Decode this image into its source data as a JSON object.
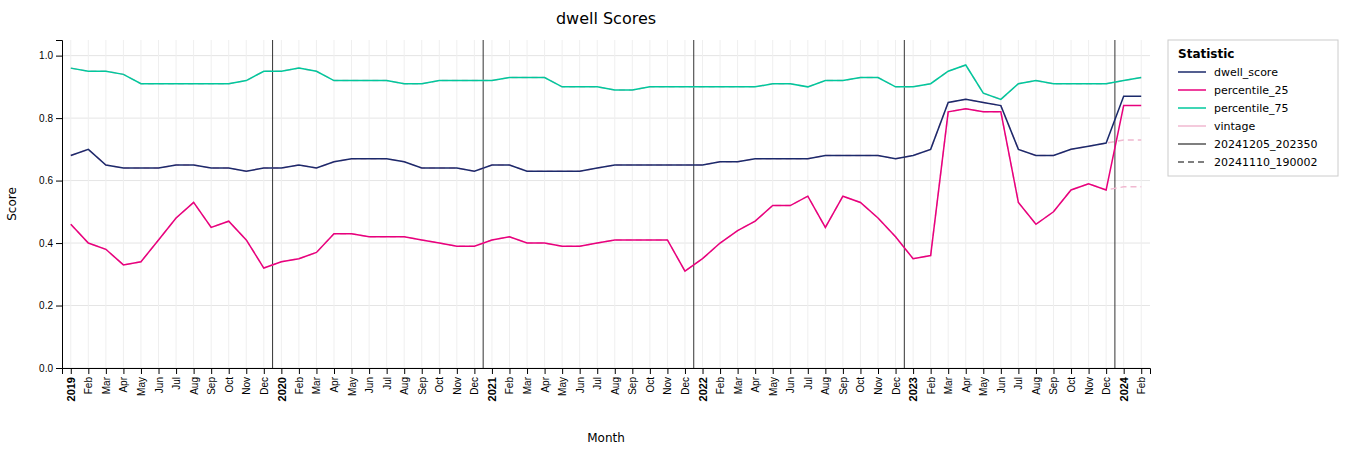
{
  "chart_data": {
    "type": "line",
    "title": "dwell Scores",
    "x_label": "Month",
    "y_label": "Score",
    "categories": [
      "2019",
      "Feb",
      "Mar",
      "Apr",
      "May",
      "Jun",
      "Jul",
      "Aug",
      "Sep",
      "Oct",
      "Nov",
      "Dec",
      "2020",
      "Feb",
      "Mar",
      "Apr",
      "May",
      "Jun",
      "Jul",
      "Aug",
      "Sep",
      "Oct",
      "Nov",
      "Dec",
      "2021",
      "Feb",
      "Mar",
      "Apr",
      "May",
      "Jun",
      "Jul",
      "Aug",
      "Sep",
      "Oct",
      "Nov",
      "Dec",
      "2022",
      "Feb",
      "Mar",
      "Apr",
      "May",
      "Jun",
      "Jul",
      "Aug",
      "Sep",
      "Oct",
      "Nov",
      "Dec",
      "2023",
      "Feb",
      "Mar",
      "Apr",
      "May",
      "Jun",
      "Jul",
      "Aug",
      "Sep",
      "Oct",
      "Nov",
      "Dec",
      "2024",
      "Feb"
    ],
    "series": [
      {
        "color": "#f0b8d0",
        "line_style": "dashed",
        "values": [
          0.68,
          0.7,
          0.65,
          0.64,
          0.64,
          0.64,
          0.65,
          0.65,
          0.64,
          0.64,
          0.63,
          0.64,
          0.64,
          0.65,
          0.64,
          0.66,
          0.67,
          0.67,
          0.67,
          0.66,
          0.64,
          0.64,
          0.64,
          0.63,
          0.65,
          0.65,
          0.63,
          0.63,
          0.63,
          0.63,
          0.64,
          0.65,
          0.65,
          0.65,
          0.65,
          0.65,
          0.65,
          0.66,
          0.66,
          0.67,
          0.67,
          0.67,
          0.67,
          0.68,
          0.68,
          0.68,
          0.68,
          0.67,
          0.68,
          0.7,
          0.85,
          0.86,
          0.85,
          0.84,
          0.7,
          0.68,
          0.68,
          0.7,
          0.71,
          0.72,
          0.73,
          0.73
        ]
      },
      {
        "color": "#f0b8d0",
        "line_style": "dashed",
        "values": [
          0.46,
          0.4,
          0.38,
          0.33,
          0.34,
          0.41,
          0.48,
          0.53,
          0.45,
          0.47,
          0.41,
          0.32,
          0.34,
          0.35,
          0.37,
          0.43,
          0.43,
          0.42,
          0.42,
          0.42,
          0.41,
          0.4,
          0.39,
          0.39,
          0.41,
          0.42,
          0.4,
          0.4,
          0.39,
          0.39,
          0.4,
          0.41,
          0.41,
          0.41,
          0.41,
          0.31,
          0.35,
          0.4,
          0.44,
          0.47,
          0.52,
          0.52,
          0.55,
          0.45,
          0.55,
          0.53,
          0.48,
          0.42,
          0.35,
          0.36,
          0.82,
          0.83,
          0.82,
          0.82,
          0.53,
          0.46,
          0.5,
          0.57,
          0.59,
          0.57,
          0.58,
          0.58
        ]
      },
      {
        "color": "#f0b8d0",
        "line_style": "dashed",
        "values": [
          0.96,
          0.95,
          0.95,
          0.94,
          0.91,
          0.91,
          0.91,
          0.91,
          0.91,
          0.91,
          0.92,
          0.95,
          0.95,
          0.96,
          0.95,
          0.92,
          0.92,
          0.92,
          0.92,
          0.91,
          0.91,
          0.92,
          0.92,
          0.92,
          0.92,
          0.93,
          0.93,
          0.93,
          0.9,
          0.9,
          0.9,
          0.89,
          0.89,
          0.9,
          0.9,
          0.9,
          0.9,
          0.9,
          0.9,
          0.9,
          0.91,
          0.91,
          0.9,
          0.92,
          0.92,
          0.93,
          0.93,
          0.9,
          0.9,
          0.91,
          0.95,
          0.97,
          0.88,
          0.86,
          0.91,
          0.92,
          0.91,
          0.91,
          0.91,
          0.91,
          0.92,
          0.93
        ]
      },
      {
        "color": "#1b2a6b",
        "line_style": "solid",
        "values": [
          0.68,
          0.7,
          0.65,
          0.64,
          0.64,
          0.64,
          0.65,
          0.65,
          0.64,
          0.64,
          0.63,
          0.64,
          0.64,
          0.65,
          0.64,
          0.66,
          0.67,
          0.67,
          0.67,
          0.66,
          0.64,
          0.64,
          0.64,
          0.63,
          0.65,
          0.65,
          0.63,
          0.63,
          0.63,
          0.63,
          0.64,
          0.65,
          0.65,
          0.65,
          0.65,
          0.65,
          0.65,
          0.66,
          0.66,
          0.67,
          0.67,
          0.67,
          0.67,
          0.68,
          0.68,
          0.68,
          0.68,
          0.67,
          0.68,
          0.7,
          0.85,
          0.86,
          0.85,
          0.84,
          0.7,
          0.68,
          0.68,
          0.7,
          0.71,
          0.72,
          0.87,
          0.87
        ]
      },
      {
        "color": "#e8007d",
        "line_style": "solid",
        "values": [
          0.46,
          0.4,
          0.38,
          0.33,
          0.34,
          0.41,
          0.48,
          0.53,
          0.45,
          0.47,
          0.41,
          0.32,
          0.34,
          0.35,
          0.37,
          0.43,
          0.43,
          0.42,
          0.42,
          0.42,
          0.41,
          0.4,
          0.39,
          0.39,
          0.41,
          0.42,
          0.4,
          0.4,
          0.39,
          0.39,
          0.4,
          0.41,
          0.41,
          0.41,
          0.41,
          0.31,
          0.35,
          0.4,
          0.44,
          0.47,
          0.52,
          0.52,
          0.55,
          0.45,
          0.55,
          0.53,
          0.48,
          0.42,
          0.35,
          0.36,
          0.82,
          0.83,
          0.82,
          0.82,
          0.53,
          0.46,
          0.5,
          0.57,
          0.59,
          0.57,
          0.84,
          0.84
        ]
      },
      {
        "color": "#00c89c",
        "line_style": "solid",
        "values": [
          0.96,
          0.95,
          0.95,
          0.94,
          0.91,
          0.91,
          0.91,
          0.91,
          0.91,
          0.91,
          0.92,
          0.95,
          0.95,
          0.96,
          0.95,
          0.92,
          0.92,
          0.92,
          0.92,
          0.91,
          0.91,
          0.92,
          0.92,
          0.92,
          0.92,
          0.93,
          0.93,
          0.93,
          0.9,
          0.9,
          0.9,
          0.89,
          0.89,
          0.9,
          0.9,
          0.9,
          0.9,
          0.9,
          0.9,
          0.9,
          0.91,
          0.91,
          0.9,
          0.92,
          0.92,
          0.93,
          0.93,
          0.9,
          0.9,
          0.91,
          0.95,
          0.97,
          0.88,
          0.86,
          0.91,
          0.92,
          0.91,
          0.91,
          0.91,
          0.91,
          0.92,
          0.93
        ]
      }
    ],
    "year_boundaries": [
      11.5,
      23.5,
      35.5,
      47.5,
      59.5
    ],
    "year_boundary_color": "#333333",
    "ylim": [
      0.0,
      1.05
    ],
    "yticks": [
      {
        "value": 0.0,
        "label": "0.0"
      },
      {
        "value": 0.2,
        "label": "0.2"
      },
      {
        "value": 0.4,
        "label": "0.4"
      },
      {
        "value": 0.6,
        "label": "0.6"
      },
      {
        "value": 0.8,
        "label": "0.8"
      },
      {
        "value": 1.0,
        "label": "1.0"
      }
    ],
    "grid": true,
    "legend": "upper right",
    "legend_title": "Statistic",
    "legend_entries": [
      {
        "name": "dwell_score",
        "color": "#1b2a6b",
        "line_style": "solid"
      },
      {
        "name": "percentile_25",
        "color": "#e8007d",
        "line_style": "solid"
      },
      {
        "name": "percentile_75",
        "color": "#00c89c",
        "line_style": "solid"
      },
      {
        "name": "vintage",
        "color": "#f0b8d0",
        "line_style": "solid"
      },
      {
        "name": "20241205_202350",
        "color": "#555555",
        "line_style": "solid"
      },
      {
        "name": "20241110_190002",
        "color": "#555555",
        "line_style": "dashed"
      }
    ]
  }
}
